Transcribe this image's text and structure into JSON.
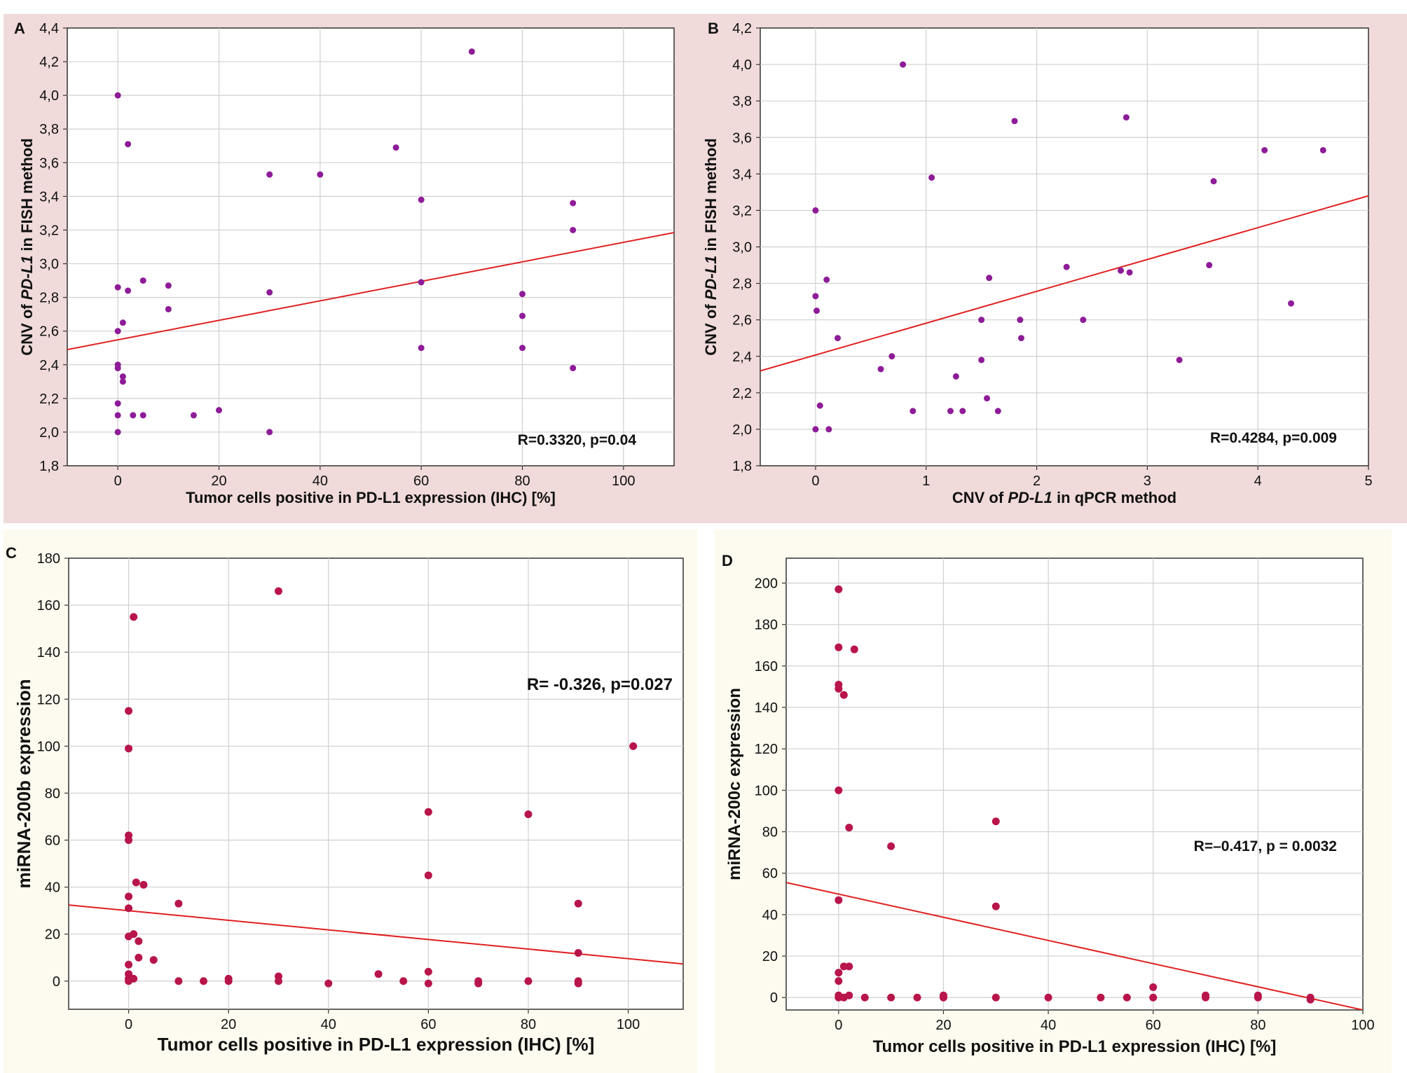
{
  "chart_data": [
    {
      "panel_label": "A",
      "type": "scatter",
      "xlabel_parts": [
        {
          "t": "Tumor cells positive in PD-L1 expression (IHC) [%]",
          "i": false
        }
      ],
      "ylabel_parts": [
        {
          "t": "CNV of ",
          "i": false
        },
        {
          "t": "PD-L1",
          "i": true
        },
        {
          "t": " in FISH method",
          "i": false
        }
      ],
      "xlim": [
        -10,
        110
      ],
      "ylim": [
        1.8,
        4.4
      ],
      "xticks": [
        0,
        20,
        40,
        60,
        80,
        100
      ],
      "yticks": [
        1.8,
        2.0,
        2.2,
        2.4,
        2.6,
        2.8,
        3.0,
        3.2,
        3.4,
        3.6,
        3.8,
        4.0,
        4.2,
        4.4
      ],
      "ytick_labels": [
        "1,8",
        "2,0",
        "2,2",
        "2,4",
        "2,6",
        "2,8",
        "3,0",
        "3,2",
        "3,4",
        "3,6",
        "3,8",
        "4,0",
        "4,2",
        "4,4"
      ],
      "annotation": "R=0.3320, p=0.04",
      "trendline": [
        [
          -10,
          2.49
        ],
        [
          110,
          3.185
        ]
      ],
      "points": [
        [
          0,
          4.0
        ],
        [
          0,
          2.86
        ],
        [
          0,
          2.6
        ],
        [
          0,
          2.4
        ],
        [
          0,
          2.38
        ],
        [
          0,
          2.17
        ],
        [
          0,
          2.1
        ],
        [
          0,
          2.0
        ],
        [
          1,
          2.65
        ],
        [
          1,
          2.33
        ],
        [
          1,
          2.3
        ],
        [
          2,
          3.71
        ],
        [
          2,
          2.84
        ],
        [
          3,
          2.1
        ],
        [
          5,
          2.9
        ],
        [
          5,
          2.1
        ],
        [
          10,
          2.87
        ],
        [
          10,
          2.73
        ],
        [
          15,
          2.1
        ],
        [
          20,
          2.13
        ],
        [
          30,
          3.53
        ],
        [
          30,
          2.83
        ],
        [
          30,
          2.0
        ],
        [
          40,
          3.53
        ],
        [
          55,
          3.69
        ],
        [
          60,
          3.38
        ],
        [
          60,
          2.89
        ],
        [
          60,
          2.5
        ],
        [
          70,
          4.26
        ],
        [
          80,
          2.82
        ],
        [
          80,
          2.69
        ],
        [
          80,
          2.5
        ],
        [
          90,
          3.36
        ],
        [
          90,
          3.2
        ],
        [
          90,
          2.38
        ]
      ],
      "style": {
        "bg": "#f0dada",
        "point": "#8e1c98",
        "line": "#e02020",
        "bold_labels": true
      }
    },
    {
      "panel_label": "B",
      "type": "scatter",
      "xlabel_parts": [
        {
          "t": "CNV of ",
          "i": false
        },
        {
          "t": "PD-L1",
          "i": true
        },
        {
          "t": " in qPCR method",
          "i": false
        }
      ],
      "ylabel_parts": [
        {
          "t": "CNV of ",
          "i": false
        },
        {
          "t": "PD-L1",
          "i": true
        },
        {
          "t": " in FISH method",
          "i": false
        }
      ],
      "xlim": [
        -0.5,
        5
      ],
      "ylim": [
        1.8,
        4.2
      ],
      "xticks": [
        0,
        1,
        2,
        3,
        4,
        5
      ],
      "yticks": [
        1.8,
        2.0,
        2.2,
        2.4,
        2.6,
        2.8,
        3.0,
        3.2,
        3.4,
        3.6,
        3.8,
        4.0,
        4.2
      ],
      "ytick_labels": [
        "1,8",
        "2,0",
        "2,2",
        "2,4",
        "2,6",
        "2,8",
        "3,0",
        "3,2",
        "3,4",
        "3,6",
        "3,8",
        "4,0",
        "4,2"
      ],
      "annotation": "R=0.4284, p=0.009",
      "trendline": [
        [
          -0.5,
          2.32
        ],
        [
          5,
          3.28
        ]
      ],
      "points": [
        [
          0.0,
          3.2
        ],
        [
          0.0,
          2.73
        ],
        [
          0.01,
          2.65
        ],
        [
          0.0,
          2.0
        ],
        [
          0.04,
          2.13
        ],
        [
          0.1,
          2.82
        ],
        [
          0.12,
          2.0
        ],
        [
          0.2,
          2.5
        ],
        [
          0.59,
          2.33
        ],
        [
          0.69,
          2.4
        ],
        [
          0.79,
          4.0
        ],
        [
          0.88,
          2.1
        ],
        [
          1.05,
          3.38
        ],
        [
          1.22,
          2.1
        ],
        [
          1.27,
          2.29
        ],
        [
          1.33,
          2.1
        ],
        [
          1.5,
          2.6
        ],
        [
          1.5,
          2.38
        ],
        [
          1.55,
          2.17
        ],
        [
          1.57,
          2.83
        ],
        [
          1.65,
          2.1
        ],
        [
          1.8,
          3.69
        ],
        [
          1.85,
          2.6
        ],
        [
          1.86,
          2.5
        ],
        [
          2.27,
          2.89
        ],
        [
          2.42,
          2.6
        ],
        [
          2.76,
          2.87
        ],
        [
          2.81,
          3.71
        ],
        [
          2.84,
          2.86
        ],
        [
          3.29,
          2.38
        ],
        [
          3.56,
          2.9
        ],
        [
          3.6,
          3.36
        ],
        [
          4.06,
          3.53
        ],
        [
          4.3,
          2.69
        ],
        [
          4.59,
          3.53
        ]
      ],
      "style": {
        "bg": "#f0dada",
        "point": "#8e1c98",
        "line": "#e02020",
        "bold_labels": false
      }
    },
    {
      "panel_label": "C",
      "type": "scatter",
      "xlabel_parts": [
        {
          "t": "Tumor cells positive in PD-L1 expression (IHC) [%]",
          "i": false
        }
      ],
      "ylabel_parts": [
        {
          "t": "miRNA-200b expression",
          "i": false
        }
      ],
      "xlim": [
        -12,
        111
      ],
      "ylim": [
        -12,
        180
      ],
      "xticks": [
        0,
        20,
        40,
        60,
        80,
        100
      ],
      "yticks": [
        0,
        20,
        40,
        60,
        80,
        100,
        120,
        140,
        160,
        180
      ],
      "ytick_labels": [
        "0",
        "20",
        "40",
        "60",
        "80",
        "100",
        "120",
        "140",
        "160",
        "180"
      ],
      "annotation": "R= -0.326, p=0.027",
      "trendline": [
        [
          -12,
          32.4
        ],
        [
          111,
          7.3
        ]
      ],
      "points": [
        [
          0,
          115
        ],
        [
          0,
          99
        ],
        [
          0,
          62
        ],
        [
          0,
          60
        ],
        [
          0,
          36
        ],
        [
          0,
          31
        ],
        [
          0,
          19
        ],
        [
          0,
          7
        ],
        [
          0,
          3
        ],
        [
          0,
          1
        ],
        [
          0,
          0
        ],
        [
          1,
          155
        ],
        [
          1,
          20
        ],
        [
          1,
          1
        ],
        [
          1.5,
          42
        ],
        [
          2,
          17
        ],
        [
          2,
          10
        ],
        [
          3,
          41
        ],
        [
          5,
          9
        ],
        [
          10,
          33
        ],
        [
          10,
          0
        ],
        [
          15,
          0
        ],
        [
          20,
          1
        ],
        [
          20,
          0
        ],
        [
          30,
          166
        ],
        [
          30,
          2
        ],
        [
          30,
          0
        ],
        [
          40,
          -1
        ],
        [
          50,
          3
        ],
        [
          55,
          0
        ],
        [
          60,
          72
        ],
        [
          60,
          45
        ],
        [
          60,
          4
        ],
        [
          60,
          -1
        ],
        [
          70,
          0
        ],
        [
          70,
          -1
        ],
        [
          80,
          71
        ],
        [
          80,
          0
        ],
        [
          90,
          33
        ],
        [
          90,
          12
        ],
        [
          90,
          0
        ],
        [
          90,
          -1
        ],
        [
          101,
          100
        ]
      ],
      "style": {
        "bg": "#fdfaef",
        "point": "#b8154a",
        "line": "#e02020",
        "bold_labels": true
      }
    },
    {
      "panel_label": "D",
      "type": "scatter",
      "xlabel_parts": [
        {
          "t": "Tumor cells positive in PD-L1 expression (IHC) [%]",
          "i": false
        }
      ],
      "ylabel_parts": [
        {
          "t": "miRNA-200c expression",
          "i": false
        }
      ],
      "xlim": [
        -10,
        100
      ],
      "ylim": [
        -6,
        212
      ],
      "xticks": [
        0,
        20,
        40,
        60,
        80,
        100
      ],
      "yticks": [
        0,
        20,
        40,
        60,
        80,
        100,
        120,
        140,
        160,
        180,
        200
      ],
      "ytick_labels": [
        "0",
        "20",
        "40",
        "60",
        "80",
        "100",
        "120",
        "140",
        "160",
        "180",
        "200"
      ],
      "annotation": "R=–0.417, p = 0.0032",
      "trendline": [
        [
          -10,
          55.5
        ],
        [
          100,
          -6
        ]
      ],
      "points": [
        [
          0,
          197
        ],
        [
          0,
          169
        ],
        [
          0,
          151
        ],
        [
          0,
          149
        ],
        [
          0,
          100
        ],
        [
          0,
          47
        ],
        [
          0,
          12
        ],
        [
          0,
          8
        ],
        [
          0,
          1
        ],
        [
          0,
          0
        ],
        [
          1,
          146
        ],
        [
          1,
          15
        ],
        [
          1,
          0
        ],
        [
          2,
          82
        ],
        [
          2,
          15
        ],
        [
          2,
          1
        ],
        [
          3,
          168
        ],
        [
          5,
          0
        ],
        [
          10,
          73
        ],
        [
          10,
          0
        ],
        [
          15,
          0
        ],
        [
          20,
          1
        ],
        [
          20,
          0
        ],
        [
          30,
          85
        ],
        [
          30,
          44
        ],
        [
          30,
          0
        ],
        [
          40,
          0
        ],
        [
          50,
          0
        ],
        [
          55,
          0
        ],
        [
          60,
          5
        ],
        [
          60,
          0
        ],
        [
          70,
          1
        ],
        [
          70,
          0
        ],
        [
          80,
          1
        ],
        [
          80,
          0
        ],
        [
          90,
          0
        ],
        [
          90,
          -1
        ]
      ],
      "style": {
        "bg": "#fdfaef",
        "point": "#b8154a",
        "line": "#e02020",
        "bold_labels": true
      }
    }
  ]
}
